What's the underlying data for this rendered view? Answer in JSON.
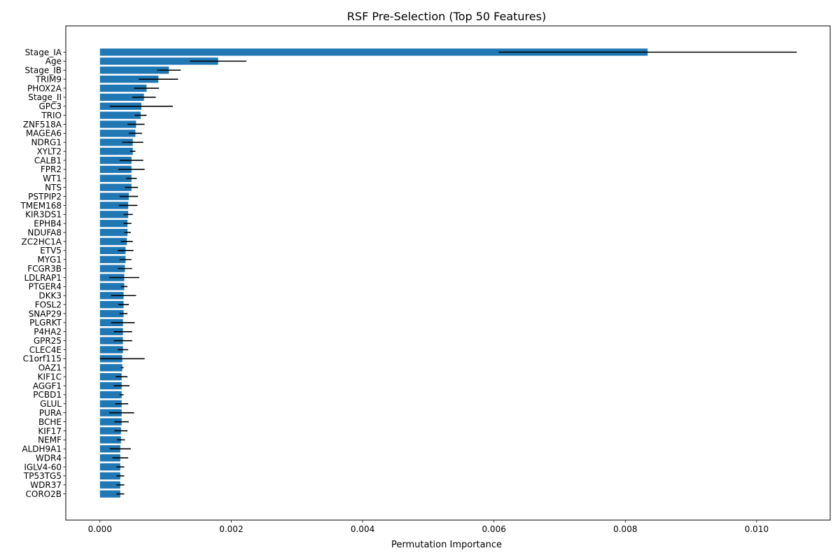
{
  "chart_data": {
    "type": "bar",
    "orientation": "horizontal",
    "title": "RSF Pre-Selection (Top 50 Features)",
    "xlabel": "Permutation Importance",
    "ylabel": "",
    "xlim": [
      -0.00052,
      0.01112
    ],
    "xticks": [
      0.0,
      0.002,
      0.004,
      0.006,
      0.008,
      0.01
    ],
    "xtick_labels": [
      "0.000",
      "0.002",
      "0.004",
      "0.006",
      "0.008",
      "0.010"
    ],
    "bar_color": "#1f77b4",
    "error_color": "#000000",
    "categories": [
      "Stage_IA",
      "Age",
      "Stage_IB",
      "TRIM9",
      "PHOX2A",
      "Stage_II",
      "GPC3",
      "TRIO",
      "ZNF518A",
      "MAGEA6",
      "NDRG1",
      "XYLT2",
      "CALB1",
      "FPR2",
      "WT1",
      "NTS",
      "PSTPIP2",
      "TMEM168",
      "KIR3DS1",
      "EPHB4",
      "NDUFA8",
      "ZC2HC1A",
      "ETV5",
      "MYG1",
      "FCGR3B",
      "LDLRAP1",
      "PTGER4",
      "DKK3",
      "FOSL2",
      "SNAP29",
      "PLGRKT",
      "P4HA2",
      "GPR25",
      "CLEC4E",
      "C1orf115",
      "OAZ1",
      "KIF1C",
      "AGGF1",
      "PCBD1",
      "GLUL",
      "PURA",
      "BCHE",
      "KIF17",
      "NEMF",
      "ALDH9A1",
      "WDR4",
      "IGLV4-60",
      "TP53TG5",
      "WDR37",
      "CORO2B"
    ],
    "values": [
      0.00834,
      0.0018,
      0.00105,
      0.00089,
      0.00071,
      0.00067,
      0.00063,
      0.00062,
      0.00055,
      0.00054,
      0.0005,
      0.0005,
      0.00048,
      0.00048,
      0.00048,
      0.00048,
      0.00044,
      0.00043,
      0.00043,
      0.00042,
      0.00042,
      0.00041,
      0.00039,
      0.00039,
      0.00038,
      0.00037,
      0.00037,
      0.00036,
      0.00036,
      0.00036,
      0.00035,
      0.00035,
      0.00035,
      0.00035,
      0.00034,
      0.00034,
      0.00033,
      0.00033,
      0.00033,
      0.00033,
      0.00033,
      0.00033,
      0.00032,
      0.00032,
      0.00031,
      0.00031,
      0.00031,
      0.00031,
      0.00031,
      0.00031
    ],
    "errors": [
      0.00227,
      0.00043,
      0.00018,
      0.0003,
      0.00019,
      0.00018,
      0.00048,
      9e-05,
      0.00013,
      0.0001,
      0.00016,
      4e-05,
      0.00018,
      0.0002,
      8e-05,
      0.0001,
      0.00014,
      0.00014,
      7e-05,
      6e-05,
      5e-05,
      9e-05,
      0.00012,
      9e-05,
      0.00011,
      0.00023,
      5e-05,
      0.00019,
      8e-05,
      6e-05,
      0.00018,
      0.00014,
      0.00014,
      8e-05,
      0.00034,
      2e-05,
      9e-05,
      0.00012,
      3e-05,
      0.0001,
      0.00019,
      0.00011,
      0.0001,
      6e-05,
      0.00016,
      0.00012,
      6e-05,
      6e-05,
      6e-05,
      6e-05
    ]
  }
}
